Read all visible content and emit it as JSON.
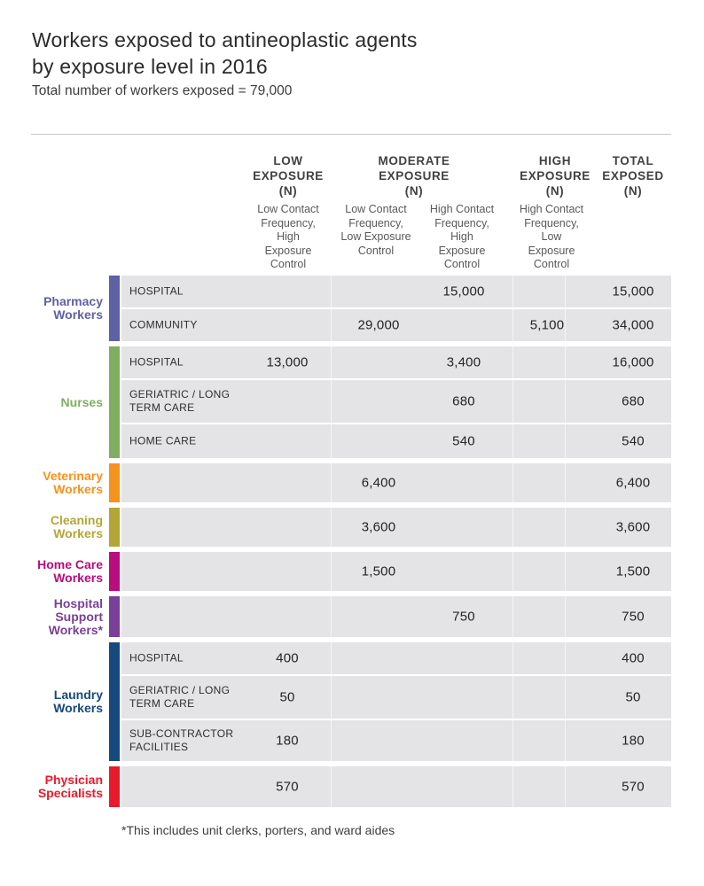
{
  "page": {
    "title_line1": "Workers exposed to antineoplastic agents",
    "title_line2": "by exposure level in 2016",
    "subtitle": "Total number of workers exposed = 79,000",
    "footnote": "*This includes unit clerks, porters, and ward aides"
  },
  "chart_data": {
    "type": "table",
    "title": "Workers exposed to antineoplastic agents by exposure level in 2016",
    "subtitle": "Total number of workers exposed = 79,000",
    "total_workers_exposed": 79000,
    "row_background_color": "#e4e4e6",
    "headers": [
      "LOW\nEXPOSURE\n(N)",
      "MODERATE\nEXPOSURE\n(N)",
      "HIGH\nEXPOSURE\n(N)",
      "TOTAL\nEXPOSED\n(N)"
    ],
    "subheaders": [
      "Low Contact\nFrequency,\nHigh\nExposure\nControl",
      "Low Contact\nFrequency,\nLow Exposure\nControl",
      "High Contact\nFrequency,\nHigh\nExposure\nControl",
      "High Contact\nFrequency,\nLow\nExposure\nControl"
    ],
    "columns": [
      {
        "level": "Low Exposure (N)",
        "description": "Low Contact Frequency, High Exposure Control"
      },
      {
        "level": "Moderate Exposure (N)",
        "description": "Low Contact Frequency, Low Exposure Control"
      },
      {
        "level": "Moderate Exposure (N)",
        "description": "High Contact Frequency, High Exposure Control"
      },
      {
        "level": "High Exposure (N)",
        "description": "High Contact Frequency, Low Exposure Control"
      },
      {
        "level": "Total Exposed (N)",
        "description": ""
      }
    ],
    "groups": [
      {
        "name": "Pharmacy\nWorkers",
        "color": "#5e61a3",
        "rows": [
          {
            "label": "HOSPITAL",
            "values": [
              "",
              "",
              "15,000",
              "",
              "15,000"
            ]
          },
          {
            "label": "COMMUNITY",
            "values": [
              "",
              "29,000",
              "",
              "5,100",
              "34,000"
            ]
          }
        ]
      },
      {
        "name": "Nurses",
        "color": "#7fae60",
        "rows": [
          {
            "label": "HOSPITAL",
            "values": [
              "13,000",
              "",
              "3,400",
              "",
              "16,000"
            ]
          },
          {
            "label": "GERIATRIC / LONG\nTERM CARE",
            "values": [
              "",
              "",
              "680",
              "",
              "680"
            ]
          },
          {
            "label": "HOME CARE",
            "values": [
              "",
              "",
              "540",
              "",
              "540"
            ]
          }
        ]
      },
      {
        "name": "Veterinary\nWorkers",
        "color": "#f6921e",
        "rows": [
          {
            "label": "",
            "values": [
              "",
              "6,400",
              "",
              "",
              "6,400"
            ]
          }
        ]
      },
      {
        "name": "Cleaning\nWorkers",
        "color": "#b3a636",
        "rows": [
          {
            "label": "",
            "values": [
              "",
              "3,600",
              "",
              "",
              "3,600"
            ]
          }
        ]
      },
      {
        "name": "Home Care\nWorkers",
        "color": "#b90c7d",
        "rows": [
          {
            "label": "",
            "values": [
              "",
              "1,500",
              "",
              "",
              "1,500"
            ]
          }
        ]
      },
      {
        "name": "Hospital\nSupport\nWorkers*",
        "color": "#7a3f98",
        "rows": [
          {
            "label": "",
            "values": [
              "",
              "",
              "750",
              "",
              "750"
            ]
          }
        ]
      },
      {
        "name": "Laundry\nWorkers",
        "color": "#164a7c",
        "rows": [
          {
            "label": "HOSPITAL",
            "values": [
              "400",
              "",
              "",
              "",
              "400"
            ]
          },
          {
            "label": "GERIATRIC / LONG\nTERM CARE",
            "values": [
              "50",
              "",
              "",
              "",
              "50"
            ]
          },
          {
            "label": "SUB-CONTRACTOR\nFACILITIES",
            "values": [
              "180",
              "",
              "",
              "",
              "180"
            ]
          }
        ]
      },
      {
        "name": "Physician\nSpecialists",
        "color": "#e71b2c",
        "rows": [
          {
            "label": "",
            "values": [
              "570",
              "",
              "",
              "",
              "570"
            ]
          }
        ]
      }
    ],
    "footnote": "*This includes unit clerks, porters, and ward aides"
  }
}
